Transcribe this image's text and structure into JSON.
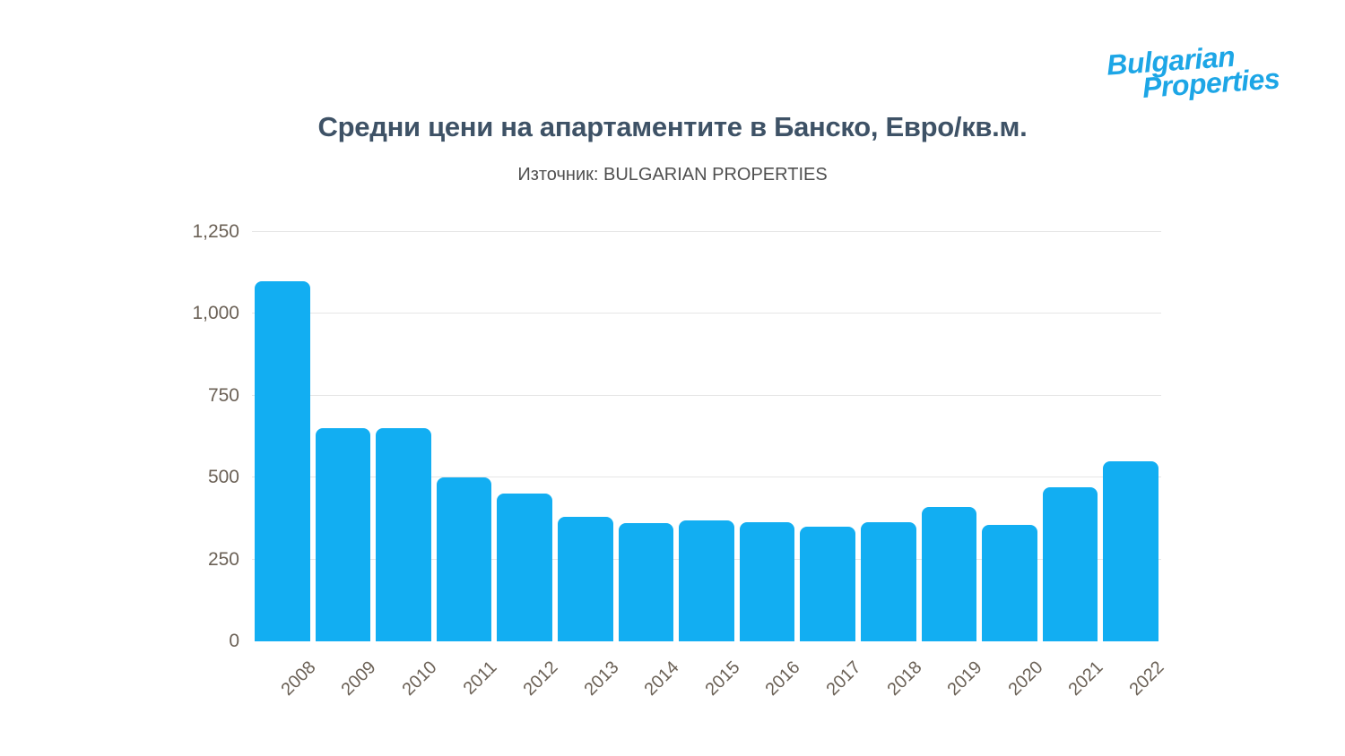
{
  "logo": {
    "line1": "Bulgarian",
    "line2": "Properties",
    "color": "#1da6e6"
  },
  "header": {
    "title": "Средни цени на апартаментите в Банско, Евро/кв.м.",
    "subtitle": "Източник: BULGARIAN PROPERTIES"
  },
  "chart_data": {
    "type": "bar",
    "title": "Средни цени на апартаментите в Банско, Евро/кв.м.",
    "subtitle": "Източник: BULGARIAN PROPERTIES",
    "categories": [
      "2008",
      "2009",
      "2010",
      "2011",
      "2012",
      "2013",
      "2014",
      "2015",
      "2016",
      "2017",
      "2018",
      "2019",
      "2020",
      "2021",
      "2022"
    ],
    "values": [
      1100,
      650,
      650,
      500,
      450,
      380,
      360,
      370,
      365,
      350,
      365,
      410,
      355,
      470,
      550
    ],
    "xlabel": "",
    "ylabel": "",
    "ylim": [
      0,
      1250
    ],
    "yticks": [
      0,
      250,
      500,
      750,
      1000,
      1250
    ],
    "ytick_labels": [
      "0",
      "250",
      "500",
      "750",
      "1,000",
      "1,250"
    ],
    "grid": true,
    "legend": "none",
    "bar_color": "#12aef2"
  },
  "colors": {
    "bar": "#12aef2",
    "grid": "#e6e6e6",
    "axis_label": "#6b6156",
    "title": "#3e5266",
    "subtitle": "#4f4f4f",
    "logo": "#1da6e6",
    "background": "#ffffff"
  }
}
